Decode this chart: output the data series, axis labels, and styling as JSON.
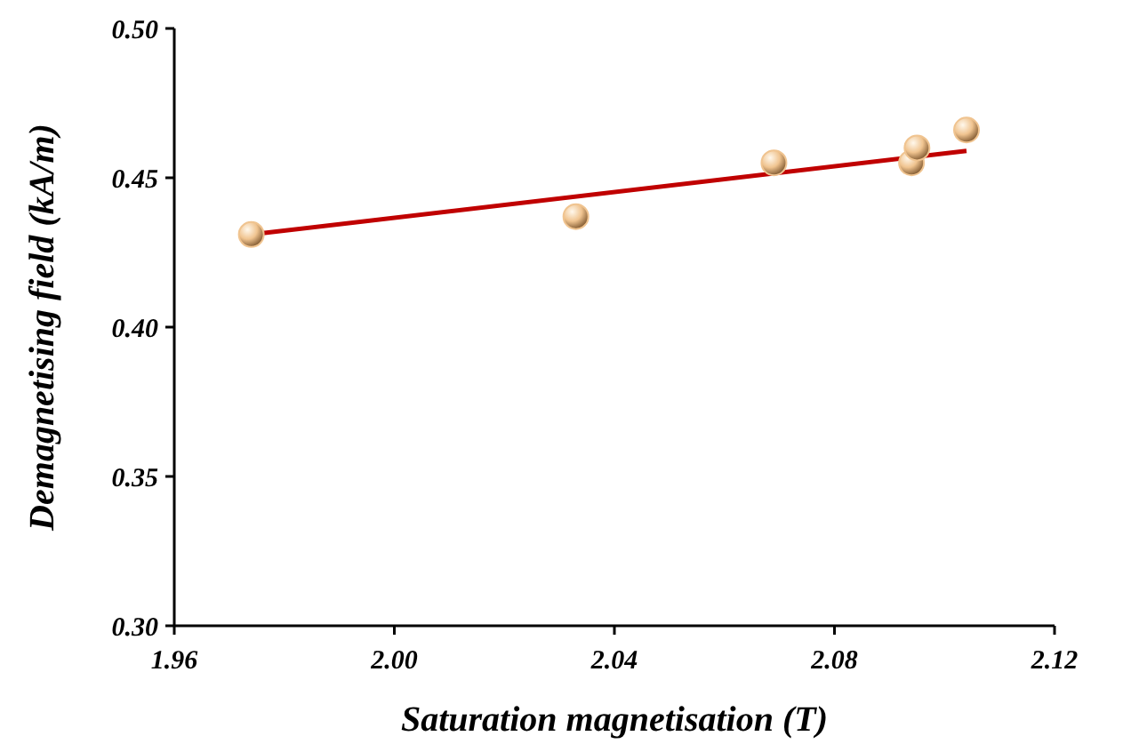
{
  "chart_data": {
    "type": "scatter",
    "xlabel": "Saturation magnetisation (T)",
    "ylabel": "Demagnetising field (kA/m)",
    "xlim": [
      1.96,
      2.12
    ],
    "xticks": [
      1.96,
      {
        "value": 2.0,
        "label": "2.00"
      },
      2.04,
      2.08,
      2.12
    ],
    "ylim": [
      0.3,
      0.5
    ],
    "yticks": [
      {
        "value": 0.3,
        "label": "0.30"
      },
      0.35,
      {
        "value": 0.4,
        "label": "0.40"
      },
      0.45,
      {
        "value": 0.5,
        "label": "0.50"
      }
    ],
    "series": [
      {
        "type": "line",
        "color": "#c00000",
        "x": [
          1.974,
          2.104
        ],
        "values": [
          0.431,
          0.459
        ],
        "line_style": "solid",
        "marker": "none"
      },
      {
        "color": "#f0c490",
        "marker": "circle",
        "x": [
          1.974,
          2.033,
          2.069,
          2.094,
          2.095,
          2.104
        ],
        "values": [
          0.431,
          0.437,
          0.455,
          0.455,
          0.46,
          0.466
        ]
      }
    ]
  }
}
